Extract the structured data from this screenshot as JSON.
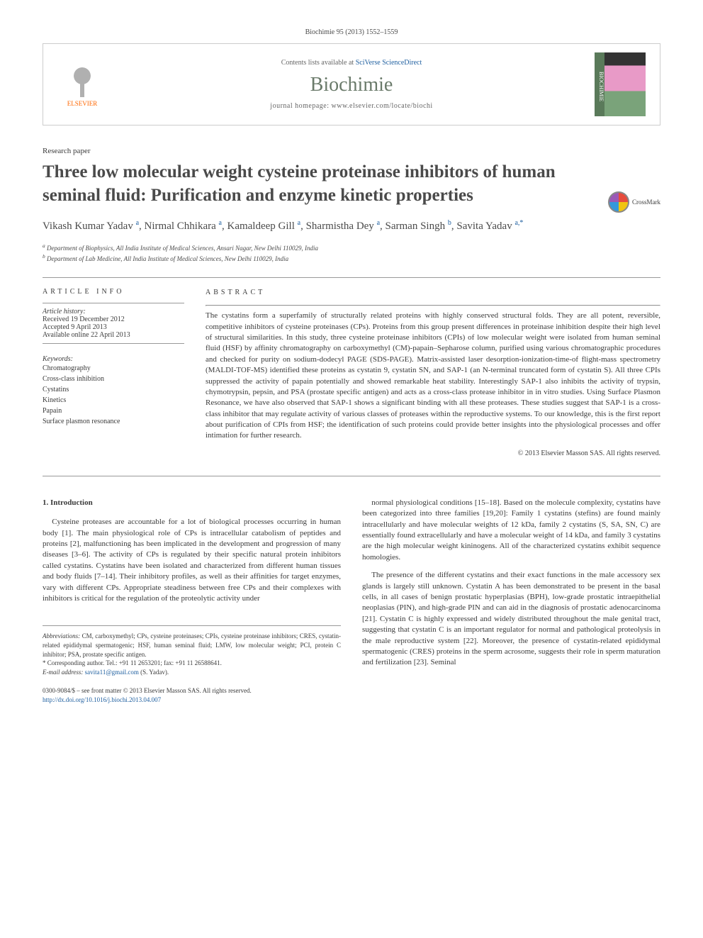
{
  "journal_ref": "Biochimie 95 (2013) 1552–1559",
  "header": {
    "contents_prefix": "Contents lists available at ",
    "contents_link": "SciVerse ScienceDirect",
    "journal_name": "Biochimie",
    "homepage_prefix": "journal homepage: ",
    "homepage_url": "www.elsevier.com/locate/biochi",
    "publisher_label": "ELSEVIER",
    "cover_spine": "BIOCHIMIE"
  },
  "colors": {
    "link": "#2060a0",
    "text": "#3a3a3a",
    "journal_name": "#6a7a6a",
    "elsevier": "#ff6600",
    "rule": "#999999"
  },
  "paper_type": "Research paper",
  "title": "Three low molecular weight cysteine proteinase inhibitors of human seminal fluid: Purification and enzyme kinetic properties",
  "crossmark_label": "CrossMark",
  "authors_html": "Vikash Kumar Yadav <sup class='sup'>a</sup>, Nirmal Chhikara <sup class='sup'>a</sup>, Kamaldeep Gill <sup class='sup'>a</sup>, Sharmistha Dey <sup class='sup'>a</sup>, Sarman Singh <sup class='sup'>b</sup>, Savita Yadav <sup class='sup'>a,*</sup>",
  "affiliations": {
    "a": "Department of Biophysics, All India Institute of Medical Sciences, Ansari Nagar, New Delhi 110029, India",
    "b": "Department of Lab Medicine, All India Institute of Medical Sciences, New Delhi 110029, India"
  },
  "article_info": {
    "label": "ARTICLE INFO",
    "history_label": "Article history:",
    "received": "Received 19 December 2012",
    "accepted": "Accepted 9 April 2013",
    "online": "Available online 22 April 2013",
    "keywords_label": "Keywords:",
    "keywords": [
      "Chromatography",
      "Cross-class inhibition",
      "Cystatins",
      "Kinetics",
      "Papain",
      "Surface plasmon resonance"
    ]
  },
  "abstract": {
    "label": "ABSTRACT",
    "text": "The cystatins form a superfamily of structurally related proteins with highly conserved structural folds. They are all potent, reversible, competitive inhibitors of cysteine proteinases (CPs). Proteins from this group present differences in proteinase inhibition despite their high level of structural similarities. In this study, three cysteine proteinase inhibitors (CPIs) of low molecular weight were isolated from human seminal fluid (HSF) by affinity chromatography on carboxymethyl (CM)-papain–Sepharose column, purified using various chromatographic procedures and checked for purity on sodium-dodecyl PAGE (SDS-PAGE). Matrix-assisted laser desorption-ionization-time-of flight-mass spectrometry (MALDI-TOF-MS) identified these proteins as cystatin 9, cystatin SN, and SAP-1 (an N-terminal truncated form of cystatin S). All three CPIs suppressed the activity of papain potentially and showed remarkable heat stability. Interestingly SAP-1 also inhibits the activity of trypsin, chymotrypsin, pepsin, and PSA (prostate specific antigen) and acts as a cross-class protease inhibitor in in vitro studies. Using Surface Plasmon Resonance, we have also observed that SAP-1 shows a significant binding with all these proteases. These studies suggest that SAP-1 is a cross-class inhibitor that may regulate activity of various classes of proteases within the reproductive systems. To our knowledge, this is the first report about purification of CPIs from HSF; the identification of such proteins could provide better insights into the physiological processes and offer intimation for further research.",
    "copyright": "© 2013 Elsevier Masson SAS. All rights reserved."
  },
  "body": {
    "section_heading": "1. Introduction",
    "col1_p1": "Cysteine proteases are accountable for a lot of biological processes occurring in human body [1]. The main physiological role of CPs is intracellular catabolism of peptides and proteins [2], malfunctioning has been implicated in the development and progression of many diseases [3–6]. The activity of CPs is regulated by their specific natural protein inhibitors called cystatins. Cystatins have been isolated and characterized from different human tissues and body fluids [7–14]. Their inhibitory profiles, as well as their affinities for target enzymes, vary with different CPs. Appropriate steadiness between free CPs and their complexes with inhibitors is critical for the regulation of the proteolytic activity under",
    "col2_p1": "normal physiological conditions [15–18]. Based on the molecule complexity, cystatins have been categorized into three families [19,20]: Family 1 cystatins (stefins) are found mainly intracellularly and have molecular weights of 12 kDa, family 2 cystatins (S, SA, SN, C) are essentially found extracellularly and have a molecular weight of 14 kDa, and family 3 cystatins are the high molecular weight kininogens. All of the characterized cystatins exhibit sequence homologies.",
    "col2_p2": "The presence of the different cystatins and their exact functions in the male accessory sex glands is largely still unknown. Cystatin A has been demonstrated to be present in the basal cells, in all cases of benign prostatic hyperplasias (BPH), low-grade prostatic intraepithelial neoplasias (PIN), and high-grade PIN and can aid in the diagnosis of prostatic adenocarcinoma [21]. Cystatin C is highly expressed and widely distributed throughout the male genital tract, suggesting that cystatin C is an important regulator for normal and pathological proteolysis in the male reproductive system [22]. Moreover, the presence of cystatin-related epididymal spermatogenic (CRES) proteins in the sperm acrosome, suggests their role in sperm maturation and fertilization [23]. Seminal"
  },
  "footnotes": {
    "abbrev_label": "Abbreviations:",
    "abbrev_text": " CM, carboxymethyl; CPs, cysteine proteinases; CPIs, cysteine proteinase inhibitors; CRES, cystatin-related epididymal spermatogenic; HSF, human seminal fluid; LMW, low molecular weight; PCI, protein C inhibitor; PSA, prostate specific antigen.",
    "corr_label": "* Corresponding author. ",
    "corr_text": "Tel.: +91 11 2653201; fax: +91 11 26588641.",
    "email_label": "E-mail address: ",
    "email": "savita11@gmail.com",
    "email_suffix": " (S. Yadav)."
  },
  "bottom": {
    "issn": "0300-9084/$ – see front matter © 2013 Elsevier Masson SAS. All rights reserved.",
    "doi_url": "http://dx.doi.org/10.1016/j.biochi.2013.04.007"
  }
}
